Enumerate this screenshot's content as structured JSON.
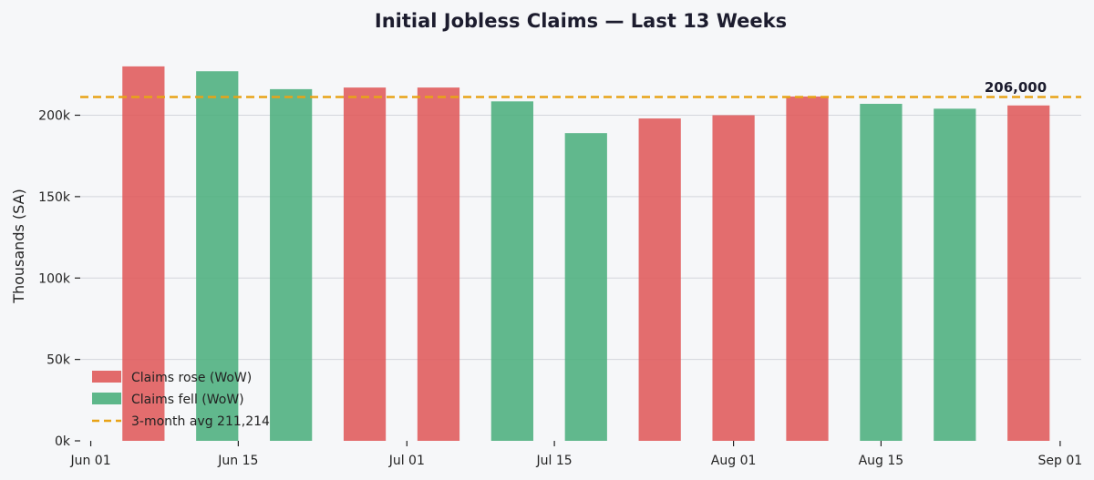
{
  "chart_data": {
    "type": "bar",
    "title": "Initial Jobless Claims — Last 13 Weeks",
    "xlabel": "",
    "ylabel": "Thousands (SA)",
    "ylim": [
      0,
      240000
    ],
    "xlim": [
      "2024-05-31",
      "2024-09-03"
    ],
    "x_ticks": [
      {
        "date": "2024-06-01",
        "label": "Jun 01"
      },
      {
        "date": "2024-06-15",
        "label": "Jun 15"
      },
      {
        "date": "2024-07-01",
        "label": "Jul 01"
      },
      {
        "date": "2024-07-15",
        "label": "Jul 15"
      },
      {
        "date": "2024-08-01",
        "label": "Aug 01"
      },
      {
        "date": "2024-08-15",
        "label": "Aug 15"
      },
      {
        "date": "2024-09-01",
        "label": "Sep 01"
      }
    ],
    "y_ticks": [
      {
        "value": 0,
        "label": "0k"
      },
      {
        "value": 50000,
        "label": "50k"
      },
      {
        "value": 100000,
        "label": "100k"
      },
      {
        "value": 150000,
        "label": "150k"
      },
      {
        "value": 200000,
        "label": "200k"
      }
    ],
    "grid": "horizontal",
    "legend_position": "bottom-left",
    "bars": [
      {
        "date": "2024-06-06",
        "value": 230000,
        "direction": "rose"
      },
      {
        "date": "2024-06-13",
        "value": 227000,
        "direction": "fell"
      },
      {
        "date": "2024-06-20",
        "value": 216000,
        "direction": "fell"
      },
      {
        "date": "2024-06-27",
        "value": 217000,
        "direction": "rose"
      },
      {
        "date": "2024-07-04",
        "value": 217000,
        "direction": "rose"
      },
      {
        "date": "2024-07-11",
        "value": 208500,
        "direction": "fell"
      },
      {
        "date": "2024-07-18",
        "value": 189000,
        "direction": "fell"
      },
      {
        "date": "2024-07-25",
        "value": 198000,
        "direction": "rose"
      },
      {
        "date": "2024-08-01",
        "value": 200000,
        "direction": "rose"
      },
      {
        "date": "2024-08-08",
        "value": 211500,
        "direction": "rose"
      },
      {
        "date": "2024-08-15",
        "value": 207000,
        "direction": "fell"
      },
      {
        "date": "2024-08-22",
        "value": 204000,
        "direction": "fell"
      },
      {
        "date": "2024-08-29",
        "value": 206000,
        "direction": "rose"
      }
    ],
    "reference_line": {
      "value": 211214,
      "label": "3-month avg  211,214"
    },
    "annotation": {
      "text": "206,000"
    },
    "legend": [
      {
        "key": "rose",
        "label": "Claims rose (WoW)",
        "kind": "patch"
      },
      {
        "key": "fell",
        "label": "Claims fell (WoW)",
        "kind": "patch"
      },
      {
        "key": "avg",
        "label": "3-month avg  211,214",
        "kind": "dash"
      }
    ],
    "colors": {
      "rose": "#e05a5a",
      "fell": "#4caf7d",
      "avg": "#e8a317",
      "grid": "#d3d6dc",
      "axis": "#222222"
    }
  }
}
